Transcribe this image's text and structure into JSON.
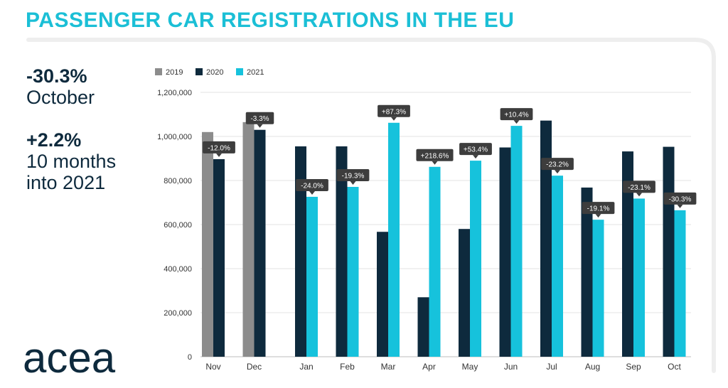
{
  "title": "PASSENGER CAR REGISTRATIONS IN THE EU",
  "stats": [
    {
      "value": "-30.3%",
      "label": [
        "October"
      ]
    },
    {
      "value": "+2.2%",
      "label": [
        "10 months",
        "into 2021"
      ]
    }
  ],
  "logo_text": "acea",
  "colors": {
    "title": "#1bbfd6",
    "2019": "#8c8c8c",
    "2020": "#0e2a3d",
    "2021": "#16c2dc",
    "grid": "#e3e3e3"
  },
  "chart_data": {
    "type": "bar",
    "categories": [
      "Nov",
      "Dec",
      "Jan",
      "Feb",
      "Mar",
      "Apr",
      "May",
      "Jun",
      "Jul",
      "Aug",
      "Sep",
      "Oct"
    ],
    "series": [
      {
        "name": "2019",
        "values": [
          1020000,
          1065000,
          null,
          null,
          null,
          null,
          null,
          null,
          null,
          null,
          null,
          null
        ]
      },
      {
        "name": "2020",
        "values": [
          897000,
          1030000,
          955000,
          955000,
          567000,
          270000,
          580000,
          950000,
          1072000,
          768000,
          932000,
          953000
        ]
      },
      {
        "name": "2021",
        "values": [
          null,
          null,
          726000,
          771000,
          1062000,
          862000,
          890000,
          1048000,
          822000,
          622000,
          718000,
          665000
        ]
      }
    ],
    "annotations": [
      "-12.0%",
      "-3.3%",
      "-24.0%",
      "-19.3%",
      "+87.3%",
      "+218.6%",
      "+53.4%",
      "+10.4%",
      "-23.2%",
      "-19.1%",
      "-23.1%",
      "-30.3%"
    ],
    "y_ticks": [
      "0",
      "200,000",
      "400,000",
      "600,000",
      "800,000",
      "1,000,000",
      "1,200,000"
    ],
    "ylim": [
      0,
      1200000
    ],
    "legend": "top-left",
    "grid": true
  }
}
